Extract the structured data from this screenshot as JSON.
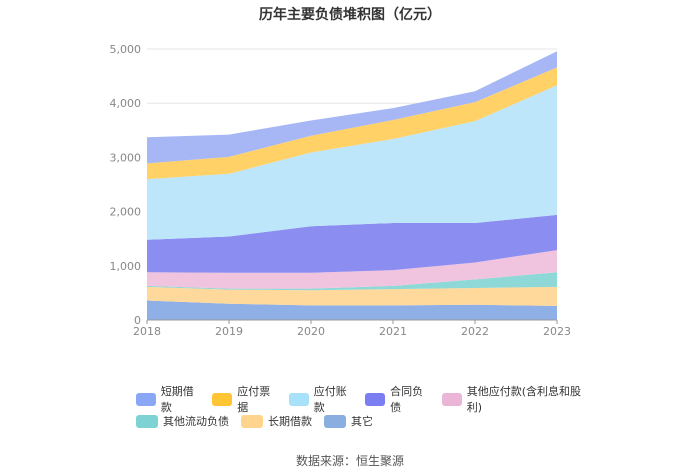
{
  "chart_data": {
    "type": "area",
    "stacked": true,
    "title": "历年主要负债堆积图（亿元）",
    "categories": [
      "2018",
      "2019",
      "2020",
      "2021",
      "2022",
      "2023"
    ],
    "ylim": [
      0,
      5000
    ],
    "yticks": [
      "0",
      "1,000",
      "2,000",
      "3,000",
      "4,000",
      "5,000"
    ],
    "grid": true,
    "legend_position": "bottom",
    "series": [
      {
        "name": "其它",
        "color": "#8fb0e6",
        "values": [
          360,
          300,
          270,
          270,
          280,
          260
        ]
      },
      {
        "name": "长期借款",
        "color": "#ffd89c",
        "values": [
          250,
          260,
          280,
          300,
          310,
          350
        ]
      },
      {
        "name": "其他流动负债",
        "color": "#8fd8d8",
        "values": [
          20,
          20,
          30,
          60,
          160,
          270
        ]
      },
      {
        "name": "其他应付款(含利息和股利)",
        "color": "#f0c4de",
        "values": [
          250,
          290,
          290,
          290,
          310,
          410
        ]
      },
      {
        "name": "合同负债",
        "color": "#8b8ef0",
        "values": [
          600,
          670,
          860,
          870,
          730,
          650
        ]
      },
      {
        "name": "应付账款",
        "color": "#bde6fa",
        "values": [
          1120,
          1160,
          1360,
          1550,
          1880,
          2390
        ]
      },
      {
        "name": "应付票据",
        "color": "#ffd166",
        "values": [
          290,
          310,
          310,
          350,
          350,
          330
        ]
      },
      {
        "name": "短期借款",
        "color": "#a7b7f5",
        "values": [
          480,
          410,
          280,
          220,
          200,
          300
        ]
      }
    ]
  },
  "legend_rows": [
    [
      {
        "label": "短期借款",
        "color": "#8aa7f5"
      },
      {
        "label": "应付票据",
        "color": "#ffc534"
      },
      {
        "label": "应付账款",
        "color": "#a8e1fa"
      },
      {
        "label": "合同负债",
        "color": "#7b7ef0"
      },
      {
        "label": "其他应付款(含利息和股利)",
        "color": "#eab5d6"
      }
    ],
    [
      {
        "label": "其他流动负债",
        "color": "#7dd3d3"
      },
      {
        "label": "长期借款",
        "color": "#ffd48c"
      },
      {
        "label": "其它",
        "color": "#8aaee0"
      }
    ]
  ],
  "source": "数据来源：恒生聚源"
}
